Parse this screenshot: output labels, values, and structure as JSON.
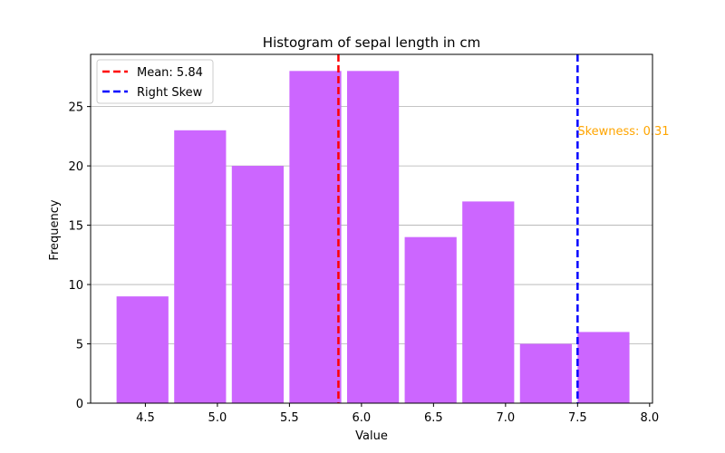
{
  "chart_data": {
    "type": "bar",
    "title": "Histogram of sepal length in cm",
    "xlabel": "Value",
    "ylabel": "Frequency",
    "xlim": [
      4.12,
      8.02
    ],
    "ylim": [
      0,
      29.4
    ],
    "xticks": [
      "4.5",
      "5.0",
      "5.5",
      "6.0",
      "6.5",
      "7.0",
      "7.5",
      "8.0"
    ],
    "yticks": [
      "0",
      "5",
      "10",
      "15",
      "20",
      "25"
    ],
    "grid": "y",
    "bar_color": "#cc66ff",
    "bins": [
      {
        "x0": 4.3,
        "x1": 4.66,
        "value": 9
      },
      {
        "x0": 4.7,
        "x1": 5.06,
        "value": 23
      },
      {
        "x0": 5.1,
        "x1": 5.46,
        "value": 20
      },
      {
        "x0": 5.5,
        "x1": 5.86,
        "value": 28
      },
      {
        "x0": 5.9,
        "x1": 6.26,
        "value": 28
      },
      {
        "x0": 6.3,
        "x1": 6.66,
        "value": 14
      },
      {
        "x0": 6.7,
        "x1": 7.06,
        "value": 17
      },
      {
        "x0": 7.1,
        "x1": 7.46,
        "value": 5
      },
      {
        "x0": 7.5,
        "x1": 7.86,
        "value": 6
      }
    ],
    "vlines": [
      {
        "label": "Mean: 5.84",
        "x": 5.84,
        "color": "#ff0000"
      },
      {
        "label": "Right Skew",
        "x": 7.5,
        "color": "#0000ff"
      }
    ],
    "annotation": {
      "text": "Skewness: 0.31",
      "x": 7.5,
      "y": 22.6,
      "color": "#ffa500"
    },
    "legend": {
      "placement": "top-left",
      "entries": [
        {
          "label": "Mean: 5.84",
          "color": "#ff0000"
        },
        {
          "label": "Right Skew",
          "color": "#0000ff"
        }
      ]
    }
  }
}
